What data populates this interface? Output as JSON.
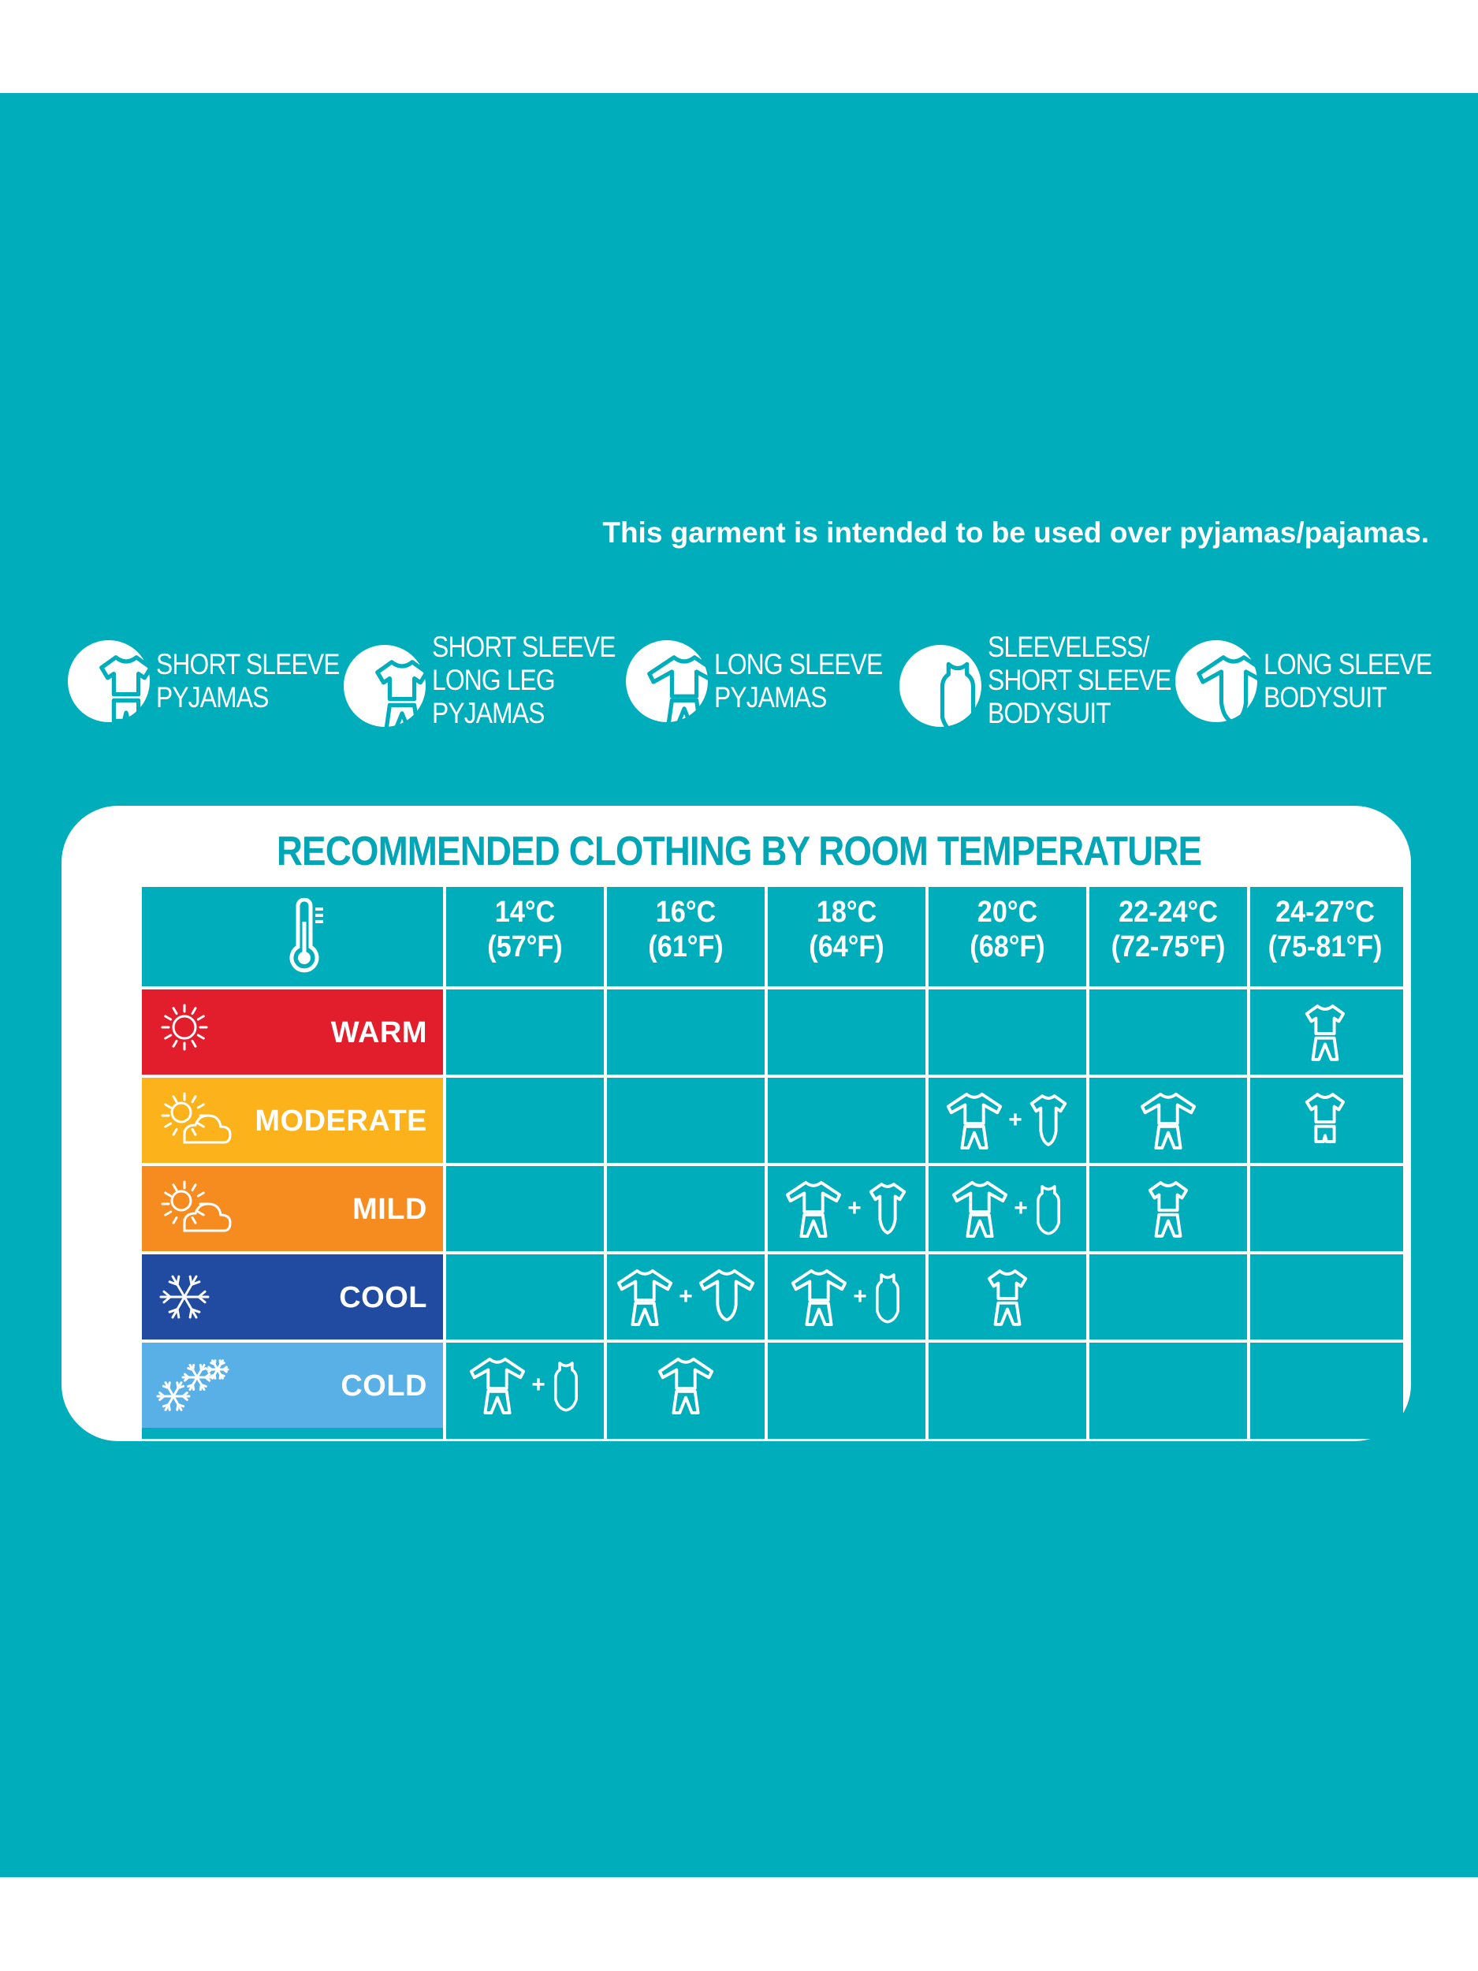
{
  "notice": "This garment is intended to be used over pyjamas/pajamas.",
  "legend": [
    {
      "icon": "short-sleeve-pyjamas-icon",
      "lines": [
        "SHORT SLEEVE",
        "PYJAMAS"
      ]
    },
    {
      "icon": "short-sleeve-long-leg-pyjamas-icon",
      "lines": [
        "SHORT SLEEVE",
        "LONG LEG",
        "PYJAMAS"
      ]
    },
    {
      "icon": "long-sleeve-pyjamas-icon",
      "lines": [
        "LONG SLEEVE",
        "PYJAMAS"
      ]
    },
    {
      "icon": "sleeveless-bodysuit-icon",
      "lines": [
        "SLEEVELESS/",
        "SHORT SLEEVE",
        "BODYSUIT"
      ]
    },
    {
      "icon": "long-sleeve-bodysuit-icon",
      "lines": [
        "LONG SLEEVE",
        "BODYSUIT"
      ]
    }
  ],
  "table": {
    "title": "RECOMMENDED CLOTHING BY ROOM TEMPERATURE",
    "header_icon": "thermometer-icon",
    "columns": [
      {
        "c": "14°C",
        "f": "(57°F)"
      },
      {
        "c": "16°C",
        "f": "(61°F)"
      },
      {
        "c": "18°C",
        "f": "(64°F)"
      },
      {
        "c": "20°C",
        "f": "(68°F)"
      },
      {
        "c": "22-24°C",
        "f": "(72-75°F)"
      },
      {
        "c": "24-27°C",
        "f": "(75-81°F)"
      }
    ],
    "rows": [
      {
        "label": "WARM",
        "color": "#e21e2c",
        "icon": "sun-icon",
        "cells": [
          [],
          [],
          [],
          [],
          [],
          [
            "short-sleeve-long-leg-pyjamas"
          ]
        ]
      },
      {
        "label": "MODERATE",
        "color": "#fbb21b",
        "icon": "sun-cloud-icon",
        "cells": [
          [],
          [],
          [],
          [
            "long-sleeve-pyjamas",
            "+",
            "short-sleeve-bodysuit"
          ],
          [
            "long-sleeve-pyjamas"
          ],
          [
            "short-sleeve-pyjamas"
          ]
        ]
      },
      {
        "label": "MILD",
        "color": "#f68b1f",
        "icon": "sun-cloud-icon",
        "cells": [
          [],
          [],
          [
            "long-sleeve-pyjamas",
            "+",
            "short-sleeve-bodysuit"
          ],
          [
            "long-sleeve-pyjamas",
            "+",
            "sleeveless-bodysuit"
          ],
          [
            "short-sleeve-long-leg-pyjamas"
          ],
          []
        ]
      },
      {
        "label": "COOL",
        "color": "#214ba0",
        "icon": "snowflake-icon",
        "cells": [
          [],
          [
            "long-sleeve-pyjamas",
            "+",
            "long-sleeve-bodysuit"
          ],
          [
            "long-sleeve-pyjamas",
            "+",
            "sleeveless-bodysuit"
          ],
          [
            "short-sleeve-long-leg-pyjamas"
          ],
          [],
          []
        ]
      },
      {
        "label": "COLD",
        "color": "#58b0e6",
        "icon": "snowflakes-icon",
        "cells": [
          [
            "long-sleeve-pyjamas",
            "+",
            "sleeveless-bodysuit"
          ],
          [
            "long-sleeve-pyjamas"
          ],
          [],
          [],
          [],
          []
        ]
      }
    ]
  }
}
